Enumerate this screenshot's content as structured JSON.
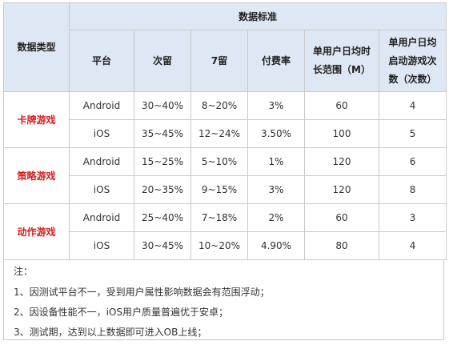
{
  "header": {
    "data_type": "数据类型",
    "data_standard": "数据标准",
    "platform": "平台",
    "day2_retention": "次留",
    "day7_retention": "7留",
    "pay_rate": "付费率",
    "avg_daily_time": [
      "单用户日均时",
      "长范围（M）"
    ],
    "avg_daily_launches": [
      "单用户日均",
      "启动游戏次",
      "数（次数）"
    ]
  },
  "categories": [
    {
      "name": "卡牌游戏",
      "rows": [
        {
          "platform": "Android",
          "day2": "30~40%",
          "day7": "8~20%",
          "pay_rate": "3%",
          "time": "60",
          "launches": "4"
        },
        {
          "platform": "iOS",
          "day2": "35~45%",
          "day7": "12~24%",
          "pay_rate": "3.50%",
          "time": "100",
          "launches": "5"
        }
      ]
    },
    {
      "name": "策略游戏",
      "rows": [
        {
          "platform": "Android",
          "day2": "15~25%",
          "day7": "5~10%",
          "pay_rate": "1%",
          "time": "120",
          "launches": "6"
        },
        {
          "platform": "iOS",
          "day2": "20~35%",
          "day7": "9~15%",
          "pay_rate": "3%",
          "time": "120",
          "launches": "8"
        }
      ]
    },
    {
      "name": "动作游戏",
      "rows": [
        {
          "platform": "Android",
          "day2": "25~40%",
          "day7": "7~18%",
          "pay_rate": "2%",
          "time": "60",
          "launches": "3"
        },
        {
          "platform": "iOS",
          "day2": "30~45%",
          "day7": "10~20%",
          "pay_rate": "4.90%",
          "time": "80",
          "launches": "4"
        }
      ]
    }
  ],
  "notes": {
    "title": "注：",
    "items": [
      "1、因测试平台不一，受到用户属性影响数据会有范围浮动；",
      "2、因设备性能不一，iOS用户质量普遍优于安卓；",
      "3、测试期，达到以上数据即可进入OB上线；"
    ]
  }
}
